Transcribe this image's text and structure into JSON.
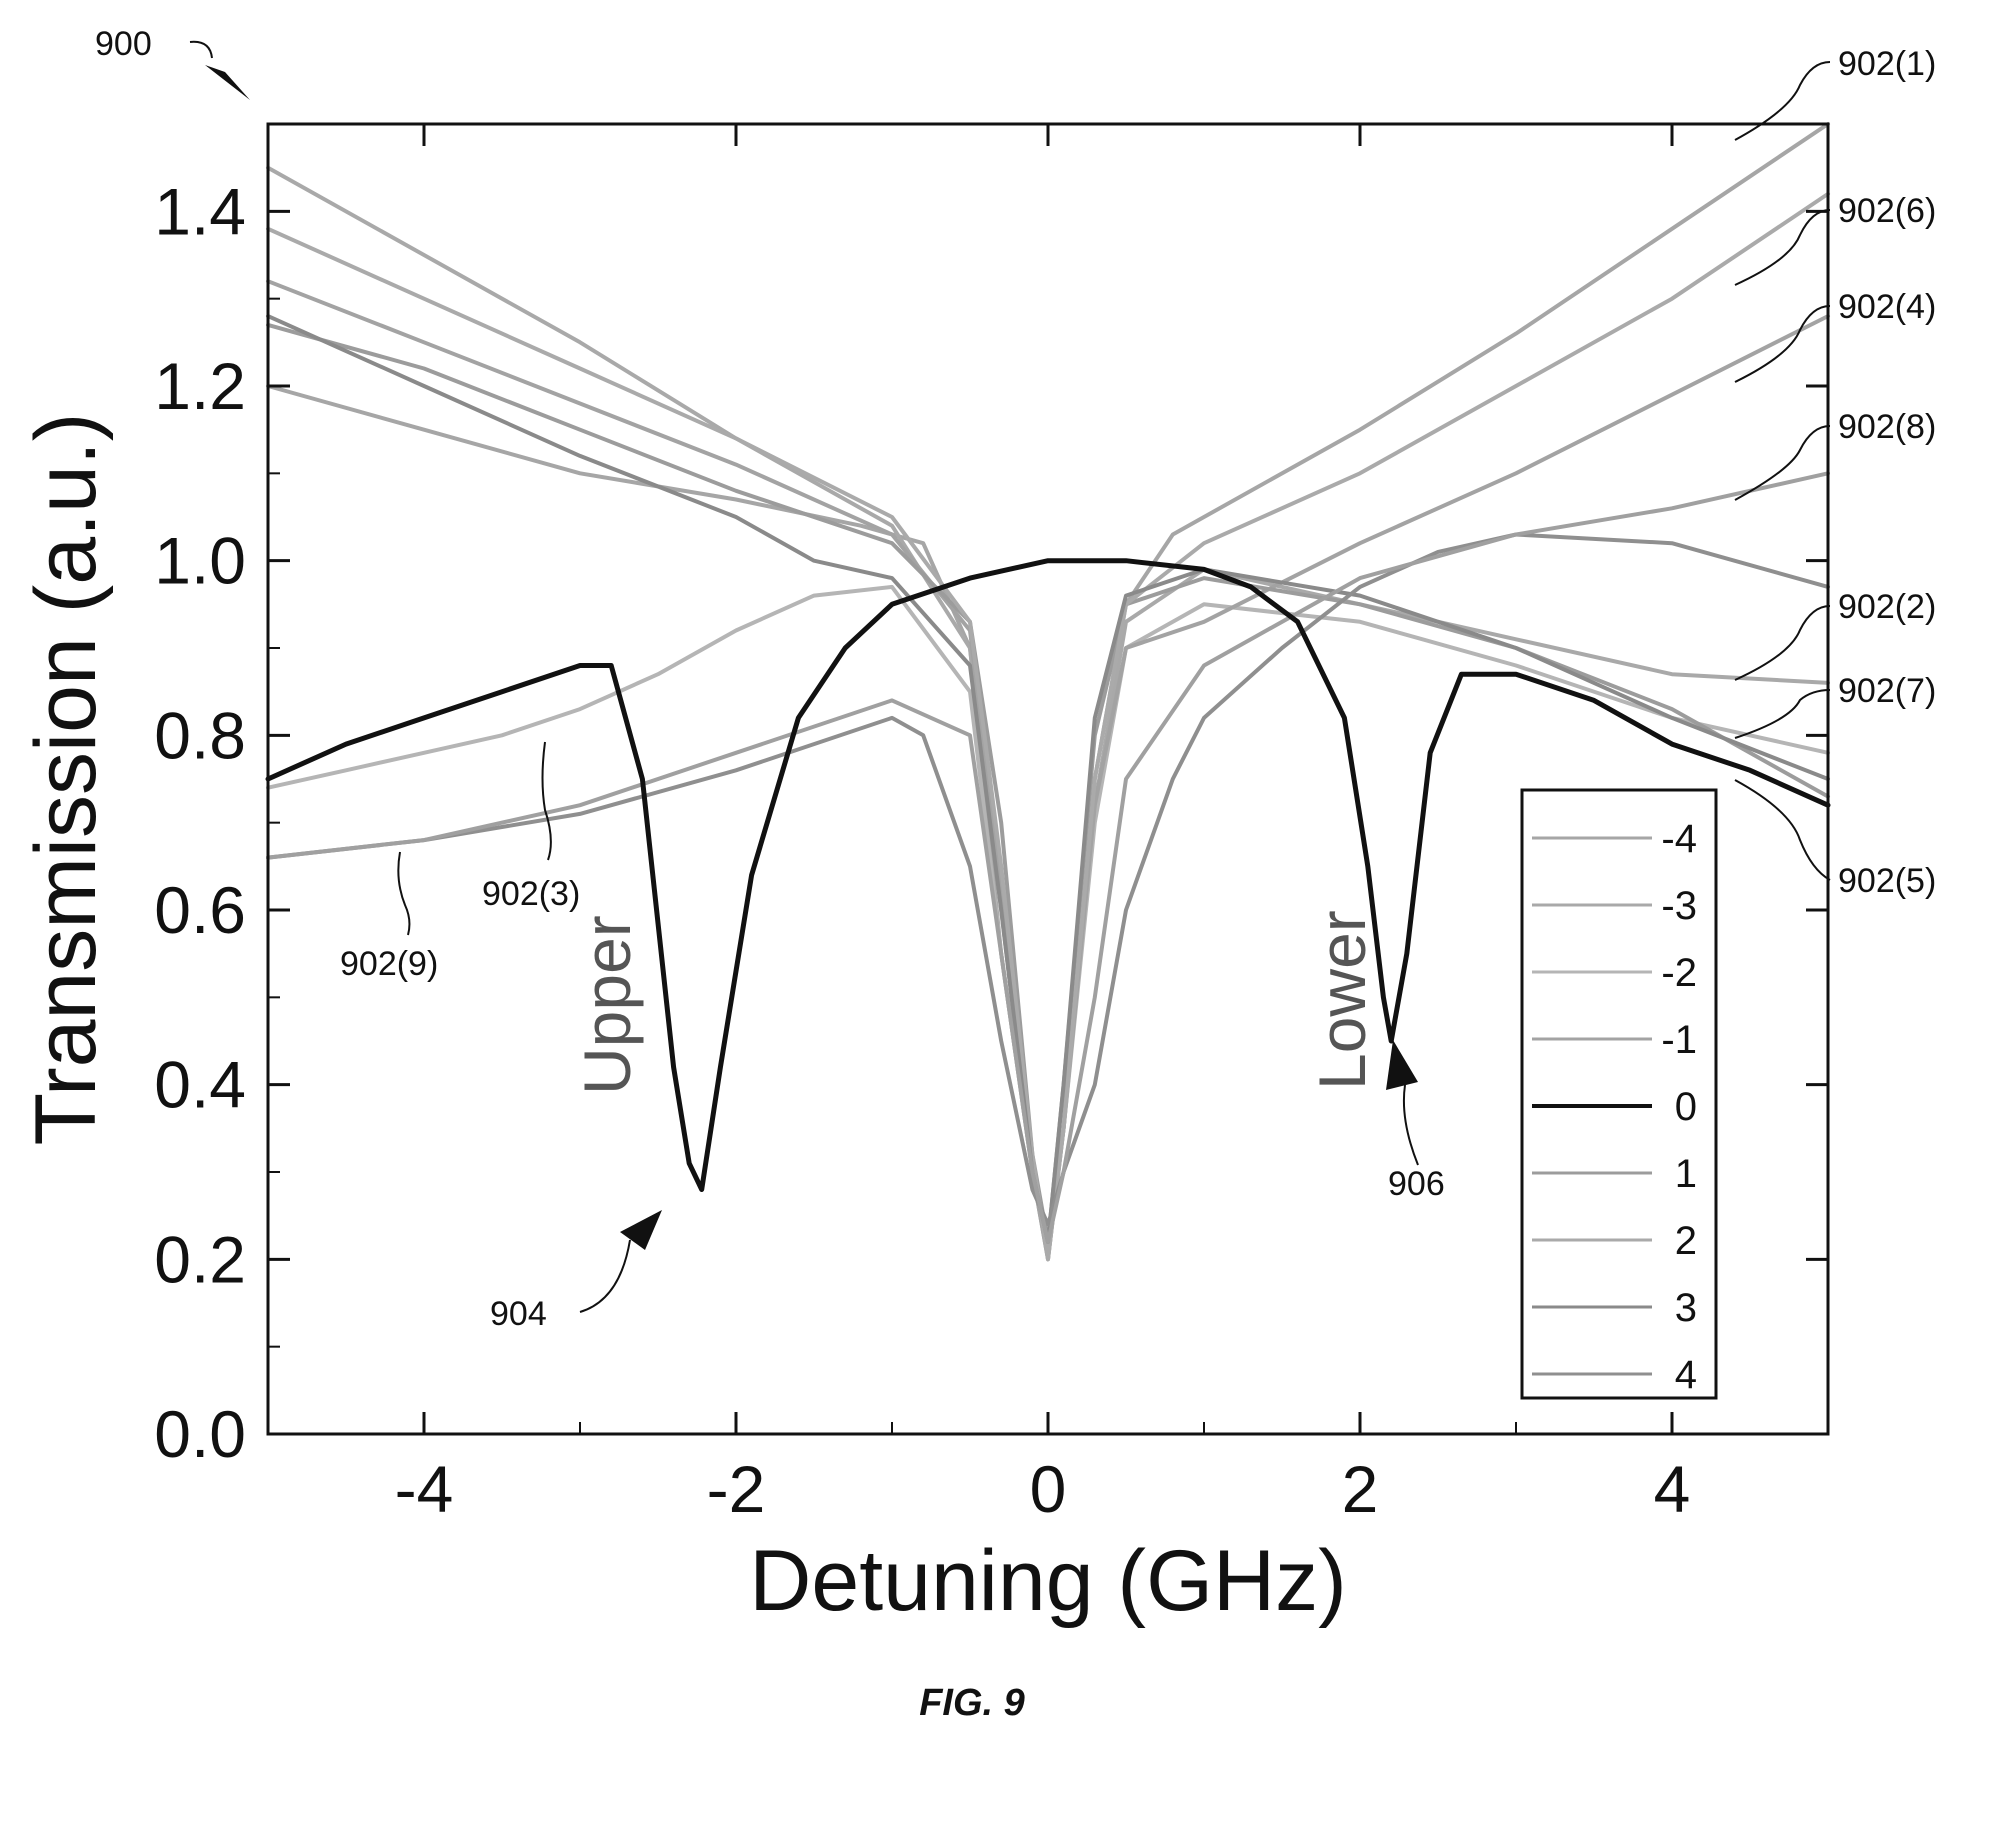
{
  "figure_number": "900",
  "caption": "FIG. 9",
  "chart_data": {
    "type": "line",
    "xlabel": "Detuning (GHz)",
    "ylabel": "Transmission (a.u.)",
    "xlim": [
      -5,
      5
    ],
    "ylim": [
      0.0,
      1.5
    ],
    "xticks": [
      "-4",
      "-2",
      "0",
      "2",
      "4"
    ],
    "yticks": [
      "0.0",
      "0.2",
      "0.4",
      "0.6",
      "0.8",
      "1.0",
      "1.2",
      "1.4"
    ],
    "grid": false,
    "legend_position": "bottom-right",
    "legend": [
      "-4",
      "-3",
      "-2",
      "-1",
      "0",
      "1",
      "2",
      "3",
      "4"
    ],
    "series": [
      {
        "ref": "902(1)",
        "legend": "-4",
        "color": "#a6a6a6",
        "x": [
          -5,
          -4,
          -3,
          -2,
          -1.2,
          -0.8,
          -0.5,
          -0.3,
          -0.1,
          0,
          0.1,
          0.3,
          0.5,
          0.8,
          1,
          2,
          3,
          4,
          5
        ],
        "y": [
          1.2,
          1.15,
          1.1,
          1.07,
          1.04,
          1.02,
          0.9,
          0.55,
          0.3,
          0.22,
          0.35,
          0.75,
          0.95,
          1.03,
          1.05,
          1.15,
          1.26,
          1.38,
          1.5
        ]
      },
      {
        "ref": "902(2)",
        "legend": "-3",
        "color": "#a9a9a9",
        "x": [
          -5,
          -4,
          -3,
          -2,
          -1,
          -0.5,
          -0.3,
          -0.1,
          0,
          0.1,
          0.3,
          0.5,
          1,
          2,
          3,
          4,
          5
        ],
        "y": [
          1.45,
          1.35,
          1.25,
          1.14,
          1.04,
          0.9,
          0.6,
          0.3,
          0.2,
          0.35,
          0.72,
          0.93,
          0.99,
          0.95,
          0.91,
          0.87,
          0.86
        ]
      },
      {
        "ref": "902(3)",
        "legend": "-2",
        "color": "#b5b5b5",
        "x": [
          -5,
          -4.5,
          -4,
          -3.5,
          -3,
          -2.5,
          -2,
          -1.5,
          -1,
          -0.5,
          -0.3,
          -0.1,
          0,
          0.1,
          0.3,
          0.5,
          1,
          2,
          3,
          4,
          5
        ],
        "y": [
          0.74,
          0.76,
          0.78,
          0.8,
          0.83,
          0.87,
          0.92,
          0.96,
          0.97,
          0.85,
          0.55,
          0.3,
          0.22,
          0.35,
          0.7,
          0.9,
          0.95,
          0.93,
          0.88,
          0.82,
          0.78
        ]
      },
      {
        "ref": "902(4)",
        "legend": "-1",
        "color": "#a3a3a3",
        "x": [
          -5,
          -4,
          -3,
          -2,
          -1,
          -0.5,
          -0.3,
          -0.1,
          0,
          0.1,
          0.3,
          0.5,
          1,
          2,
          3,
          4,
          5
        ],
        "y": [
          1.32,
          1.25,
          1.18,
          1.11,
          1.03,
          0.92,
          0.62,
          0.3,
          0.2,
          0.35,
          0.72,
          0.9,
          0.93,
          1.02,
          1.1,
          1.19,
          1.28
        ]
      },
      {
        "ref": "",
        "legend": "0",
        "color": "#111111",
        "x": [
          -5,
          -4.5,
          -4,
          -3.5,
          -3,
          -2.8,
          -2.6,
          -2.4,
          -2.3,
          -2.22,
          -2.1,
          -1.9,
          -1.6,
          -1.3,
          -1,
          -0.5,
          0,
          0.5,
          1,
          1.3,
          1.6,
          1.9,
          2.05,
          2.15,
          2.2,
          2.3,
          2.45,
          2.65,
          2.8,
          3,
          3.5,
          4,
          4.5,
          5
        ],
        "y": [
          0.75,
          0.79,
          0.82,
          0.85,
          0.88,
          0.88,
          0.75,
          0.42,
          0.31,
          0.28,
          0.42,
          0.64,
          0.82,
          0.9,
          0.95,
          0.98,
          1.0,
          1.0,
          0.99,
          0.97,
          0.93,
          0.82,
          0.65,
          0.5,
          0.45,
          0.55,
          0.78,
          0.87,
          0.87,
          0.87,
          0.84,
          0.79,
          0.76,
          0.72
        ]
      },
      {
        "ref": "902(5)",
        "legend": "1",
        "color": "#9c9c9c",
        "x": [
          -5,
          -4,
          -3,
          -2,
          -1,
          -0.5,
          -0.3,
          -0.1,
          0,
          0.1,
          0.3,
          0.5,
          1,
          2,
          3,
          4,
          5
        ],
        "y": [
          1.27,
          1.22,
          1.15,
          1.08,
          1.02,
          0.93,
          0.7,
          0.32,
          0.22,
          0.4,
          0.8,
          0.95,
          0.98,
          0.95,
          0.9,
          0.83,
          0.73
        ]
      },
      {
        "ref": "902(6)",
        "legend": "2",
        "color": "#aaaaaa",
        "x": [
          -5,
          -4,
          -3,
          -2,
          -1,
          -0.5,
          -0.3,
          -0.1,
          0,
          0.1,
          0.3,
          0.5,
          1,
          2,
          3,
          4,
          5
        ],
        "y": [
          1.38,
          1.3,
          1.22,
          1.14,
          1.05,
          0.93,
          0.65,
          0.32,
          0.2,
          0.35,
          0.75,
          0.95,
          1.02,
          1.1,
          1.2,
          1.3,
          1.42
        ]
      },
      {
        "ref": "902(7)",
        "legend": "3",
        "color": "#8a8a8a",
        "x": [
          -5,
          -4,
          -3,
          -2,
          -1.5,
          -1,
          -0.5,
          -0.3,
          -0.1,
          0,
          0.1,
          0.3,
          0.5,
          1,
          2,
          3,
          4,
          5
        ],
        "y": [
          1.28,
          1.2,
          1.12,
          1.05,
          1.0,
          0.98,
          0.88,
          0.6,
          0.3,
          0.22,
          0.4,
          0.82,
          0.96,
          0.99,
          0.96,
          0.9,
          0.82,
          0.75
        ]
      },
      {
        "ref": "902(8)",
        "legend": "4",
        "color": "#8f8f8f",
        "x": [
          -5,
          -4,
          -3,
          -2,
          -1,
          -0.8,
          -0.5,
          -0.3,
          -0.1,
          0,
          0.1,
          0.3,
          0.5,
          0.8,
          1,
          1.5,
          2,
          2.5,
          3,
          4,
          5
        ],
        "y": [
          0.66,
          0.68,
          0.71,
          0.76,
          0.82,
          0.8,
          0.65,
          0.45,
          0.28,
          0.24,
          0.3,
          0.4,
          0.6,
          0.75,
          0.82,
          0.9,
          0.97,
          1.01,
          1.03,
          1.02,
          0.97
        ]
      },
      {
        "ref": "902(9)",
        "legend": "",
        "color": "#a0a0a0",
        "x": [
          -5,
          -4,
          -3,
          -2,
          -1,
          -0.5,
          -0.3,
          -0.1,
          0,
          0.1,
          0.3,
          0.5,
          1,
          2,
          3,
          4,
          5
        ],
        "y": [
          0.66,
          0.68,
          0.72,
          0.78,
          0.84,
          0.8,
          0.55,
          0.3,
          0.22,
          0.3,
          0.5,
          0.75,
          0.88,
          0.98,
          1.03,
          1.06,
          1.1
        ]
      }
    ],
    "annotations": [
      {
        "text": "Upper",
        "ref": "904",
        "x": -2.22,
        "y": 0.28
      },
      {
        "text": "Lower",
        "ref": "906",
        "x": 2.2,
        "y": 0.45
      }
    ]
  }
}
